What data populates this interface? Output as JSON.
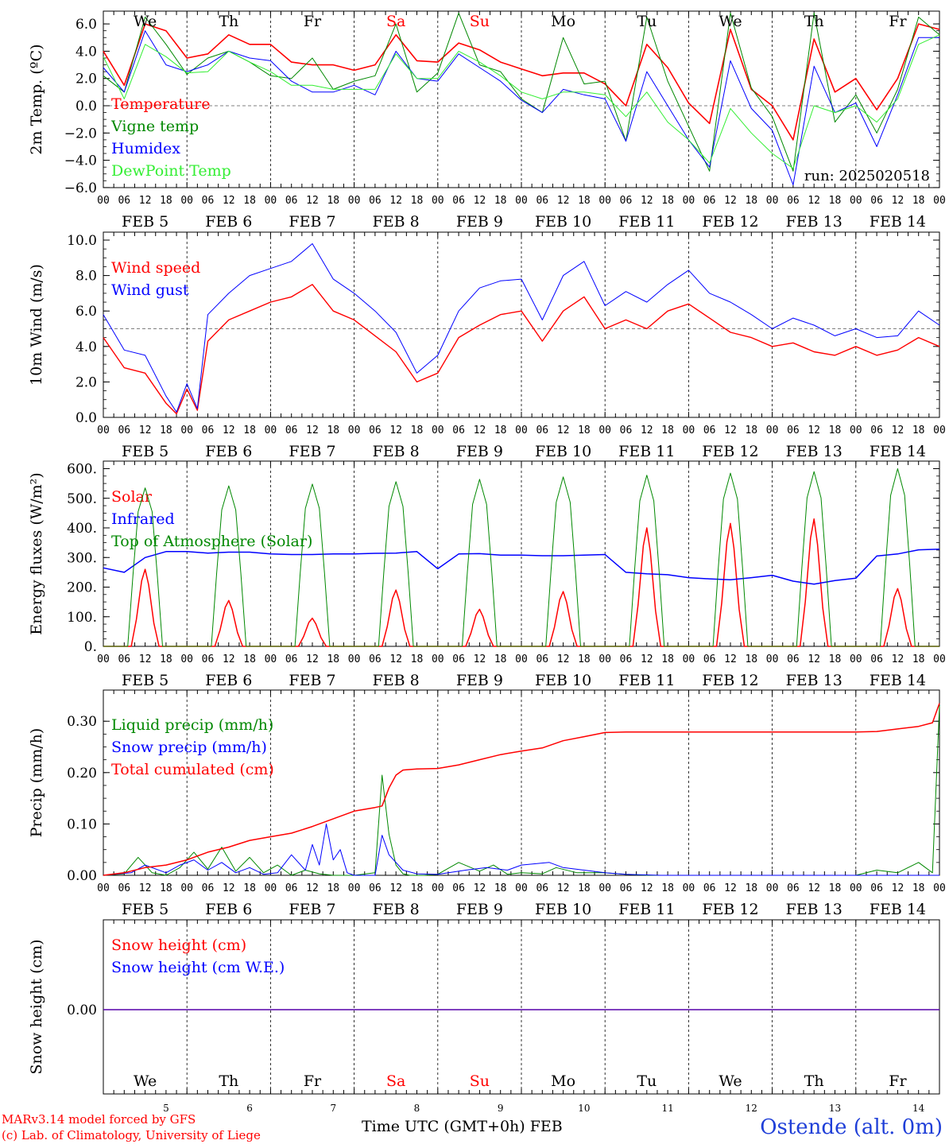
{
  "run": "run: 2025020518",
  "x_axis_title": "Time UTC (GMT+0h) FEB",
  "credit_line1": "MARv3.14 model forced by GFS",
  "credit_line2": "(c) Lab. of Climatology, University of Liege",
  "station": "Ostende (alt. 0m)",
  "hour_ticks": [
    "00",
    "06",
    "12",
    "18"
  ],
  "last_hour_tick": "00",
  "days": [
    {
      "weekday": "We",
      "date": "FEB  5",
      "day": "5",
      "weekend": false
    },
    {
      "weekday": "Th",
      "date": "FEB  6",
      "day": "6",
      "weekend": false
    },
    {
      "weekday": "Fr",
      "date": "FEB  7",
      "day": "7",
      "weekend": false
    },
    {
      "weekday": "Sa",
      "date": "FEB  8",
      "day": "8",
      "weekend": true
    },
    {
      "weekday": "Su",
      "date": "FEB  9",
      "day": "9",
      "weekend": true
    },
    {
      "weekday": "Mo",
      "date": "FEB 10",
      "day": "10",
      "weekend": false
    },
    {
      "weekday": "Tu",
      "date": "FEB 11",
      "day": "11",
      "weekend": false
    },
    {
      "weekday": "We",
      "date": "FEB 12",
      "day": "12",
      "weekend": false
    },
    {
      "weekday": "Th",
      "date": "FEB 13",
      "day": "13",
      "weekend": false
    },
    {
      "weekday": "Fr",
      "date": "FEB 14",
      "day": "14",
      "weekend": false
    }
  ],
  "colors": {
    "red": "#ff0000",
    "green": "#008800",
    "blue": "#0000ff",
    "lightgreen": "#33ee33",
    "weekend": "#ff0000",
    "station": "#1f3fd8"
  },
  "chart_data": [
    {
      "type": "line",
      "ylabel": "2m Temp. (ºC)",
      "ylim": [
        -6,
        7
      ],
      "yticks": [
        "6.0",
        "4.0",
        "2.0",
        "0.0",
        "−2.0",
        "−4.0",
        "−6.0"
      ],
      "ytick_values": [
        6,
        4,
        2,
        0,
        -2,
        -4,
        -6
      ],
      "ref_line": 0,
      "x_hours": [
        0,
        6,
        12,
        18,
        24,
        30,
        36,
        42,
        48,
        54,
        60,
        66,
        72,
        78,
        84,
        90,
        96,
        102,
        108,
        114,
        120,
        126,
        132,
        138,
        144,
        150,
        156,
        162,
        168,
        174,
        180,
        186,
        192,
        198,
        204,
        210,
        216,
        222,
        228,
        234,
        240
      ],
      "series": [
        {
          "name": "Temperature",
          "color": "red",
          "width": 1.6,
          "values": [
            4.0,
            1.5,
            6.0,
            5.5,
            3.5,
            3.8,
            5.2,
            4.5,
            4.5,
            3.2,
            3.0,
            3.0,
            2.6,
            3.0,
            5.2,
            3.3,
            3.2,
            4.6,
            4.1,
            3.2,
            2.7,
            2.2,
            2.4,
            2.4,
            1.6,
            0.0,
            4.5,
            2.8,
            0.2,
            -1.3,
            5.6,
            1.2,
            0.0,
            -2.5,
            4.9,
            1.0,
            2.0,
            -0.3,
            2.0,
            6.0,
            5.6
          ]
        },
        {
          "name": "Vigne temp",
          "color": "green",
          "width": 1,
          "values": [
            2.2,
            1.0,
            6.5,
            4.5,
            2.3,
            3.5,
            4.0,
            3.2,
            2.2,
            2.0,
            3.5,
            1.2,
            1.8,
            2.2,
            6.0,
            1.0,
            2.4,
            6.8,
            3.0,
            2.5,
            0.5,
            -0.5,
            5.0,
            1.6,
            1.8,
            -2.6,
            6.5,
            1.8,
            -1.5,
            -4.8,
            6.8,
            1.3,
            -0.8,
            -4.8,
            6.8,
            -1.2,
            0.8,
            -2.0,
            1.2,
            6.5,
            5.2
          ]
        },
        {
          "name": "Humidex",
          "color": "blue",
          "width": 1,
          "values": [
            2.8,
            1.0,
            5.5,
            3.0,
            2.5,
            3.0,
            4.0,
            3.5,
            3.3,
            1.8,
            1.0,
            1.0,
            1.5,
            0.8,
            4.0,
            2.0,
            1.8,
            3.8,
            2.8,
            1.8,
            0.4,
            -0.5,
            1.2,
            0.8,
            0.5,
            -2.6,
            2.5,
            0.0,
            -2.5,
            -4.5,
            3.3,
            -0.2,
            -1.8,
            -5.8,
            2.9,
            -0.5,
            0.2,
            -3.0,
            0.8,
            5.0,
            5.0
          ]
        },
        {
          "name": "DewPoint Temp",
          "color": "lightgreen",
          "width": 1,
          "values": [
            3.6,
            0.5,
            4.5,
            3.6,
            2.4,
            2.5,
            4.0,
            3.2,
            2.5,
            1.5,
            1.5,
            1.2,
            1.2,
            1.2,
            3.8,
            2.0,
            2.0,
            4.0,
            3.2,
            2.2,
            1.0,
            0.5,
            1.0,
            1.0,
            0.8,
            -0.8,
            1.0,
            -1.2,
            -2.5,
            -4.2,
            -0.2,
            -2.0,
            -3.5,
            -4.6,
            0.0,
            -0.5,
            0.0,
            -1.2,
            0.5,
            4.5,
            5.2
          ]
        }
      ]
    },
    {
      "type": "line",
      "ylabel": "10m Wind (m/s)",
      "ylim": [
        0,
        10.6
      ],
      "yticks": [
        "10.0",
        "8.0",
        "6.0",
        "4.0",
        "2.0",
        "0.0"
      ],
      "ytick_values": [
        10,
        8,
        6,
        4,
        2,
        0
      ],
      "ref_line": 5,
      "x_hours": [
        0,
        6,
        12,
        18,
        21,
        24,
        27,
        30,
        36,
        42,
        48,
        54,
        60,
        66,
        72,
        78,
        84,
        90,
        96,
        102,
        108,
        114,
        120,
        126,
        132,
        138,
        144,
        150,
        156,
        162,
        168,
        174,
        180,
        186,
        192,
        198,
        204,
        210,
        216,
        222,
        228,
        234,
        240
      ],
      "series": [
        {
          "name": "Wind speed",
          "color": "red",
          "width": 1.4,
          "values": [
            4.5,
            2.8,
            2.5,
            0.8,
            0.2,
            1.6,
            0.4,
            4.3,
            5.5,
            6.0,
            6.5,
            6.8,
            7.5,
            6.0,
            5.5,
            4.6,
            3.7,
            2.0,
            2.5,
            4.5,
            5.2,
            5.8,
            6.0,
            4.3,
            6.0,
            6.8,
            5.0,
            5.5,
            5.0,
            6.0,
            6.4,
            5.6,
            4.8,
            4.5,
            4.0,
            4.2,
            3.7,
            3.5,
            4.0,
            3.5,
            3.8,
            4.5,
            4.0
          ]
        },
        {
          "name": "Wind gust",
          "color": "blue",
          "width": 1,
          "values": [
            5.8,
            3.8,
            3.5,
            1.2,
            0.3,
            1.9,
            0.5,
            5.8,
            7.0,
            8.0,
            8.4,
            8.8,
            9.8,
            7.8,
            7.0,
            6.0,
            4.8,
            2.5,
            3.5,
            6.0,
            7.3,
            7.7,
            7.8,
            5.5,
            8.0,
            8.8,
            6.3,
            7.1,
            6.5,
            7.5,
            8.3,
            7.0,
            6.5,
            5.8,
            5.0,
            5.6,
            5.2,
            4.6,
            5.0,
            4.5,
            4.6,
            6.0,
            5.2
          ]
        }
      ]
    },
    {
      "type": "line",
      "ylabel": "Energy fluxes (W/m²)",
      "ylim": [
        0,
        610
      ],
      "yticks": [
        "600.",
        "500.",
        "400.",
        "300.",
        "200.",
        "100.",
        "0."
      ],
      "ytick_values": [
        600,
        500,
        400,
        300,
        200,
        100,
        0
      ],
      "series": [
        {
          "name": "Solar",
          "color": "red",
          "width": 1.5,
          "peaks": [
            260,
            155,
            95,
            190,
            125,
            185,
            400,
            415,
            430,
            195
          ]
        },
        {
          "name": "Infrared",
          "color": "blue",
          "width": 1.5,
          "x_hours": [
            0,
            6,
            12,
            18,
            24,
            30,
            36,
            42,
            48,
            54,
            60,
            66,
            72,
            78,
            84,
            90,
            96,
            102,
            108,
            114,
            120,
            126,
            132,
            138,
            144,
            150,
            156,
            162,
            168,
            174,
            180,
            186,
            192,
            198,
            204,
            210,
            216,
            222,
            228,
            234,
            240
          ],
          "values": [
            265,
            250,
            300,
            320,
            320,
            315,
            318,
            318,
            312,
            310,
            310,
            312,
            312,
            314,
            315,
            320,
            262,
            312,
            313,
            308,
            308,
            306,
            306,
            308,
            310,
            250,
            245,
            242,
            232,
            228,
            225,
            232,
            240,
            220,
            210,
            222,
            230,
            305,
            312,
            326,
            328
          ]
        },
        {
          "name": "Top of Atmosphere (Solar)",
          "color": "green",
          "width": 1,
          "peaks": [
            535,
            542,
            548,
            556,
            564,
            572,
            578,
            585,
            590,
            600
          ]
        }
      ]
    },
    {
      "type": "line",
      "ylabel": "Precip (mm/h)",
      "ylim": [
        0,
        0.35
      ],
      "yticks": [
        "0.30",
        "0.20",
        "0.10",
        "0.00"
      ],
      "ytick_values": [
        0.3,
        0.2,
        0.1,
        0
      ],
      "series": [
        {
          "name": "Liquid precip (mm/h)",
          "color": "green",
          "width": 1,
          "x_hours": [
            0,
            6,
            10,
            14,
            18,
            22,
            26,
            30,
            34,
            38,
            42,
            46,
            50,
            54,
            58,
            62,
            66,
            72,
            78,
            80,
            82,
            84,
            86,
            88,
            92,
            96,
            102,
            108,
            112,
            116,
            120,
            126,
            130,
            136,
            144,
            150,
            156,
            168,
            192,
            216,
            222,
            228,
            234,
            238,
            240
          ],
          "values": [
            0,
            0.003,
            0.035,
            0.005,
            0,
            0.015,
            0.045,
            0.012,
            0.055,
            0.008,
            0.035,
            0.005,
            0.02,
            0,
            0.01,
            0.003,
            0.0,
            0,
            0.005,
            0.195,
            0.08,
            0.02,
            0.003,
            0,
            0,
            0.002,
            0.025,
            0.008,
            0.02,
            0.002,
            0.005,
            0.003,
            0.015,
            0.005,
            0.005,
            0.002,
            0,
            0,
            0,
            0,
            0.01,
            0.005,
            0.025,
            0.005,
            0.33
          ]
        },
        {
          "name": "Snow precip (mm/h)",
          "color": "blue",
          "width": 1,
          "x_hours": [
            0,
            8,
            12,
            18,
            22,
            26,
            30,
            34,
            38,
            42,
            46,
            50,
            54,
            58,
            60,
            62,
            64,
            66,
            68,
            70,
            72,
            78,
            80,
            82,
            86,
            90,
            96,
            104,
            110,
            116,
            120,
            128,
            132,
            138,
            144,
            150,
            160,
            168,
            240
          ],
          "values": [
            0,
            0.005,
            0.02,
            0.005,
            0.02,
            0.03,
            0.01,
            0.025,
            0.005,
            0.015,
            0.002,
            0.005,
            0.04,
            0.01,
            0.06,
            0.02,
            0.1,
            0.03,
            0.05,
            0.005,
            0.0,
            0,
            0.078,
            0.04,
            0.01,
            0.003,
            0.002,
            0.01,
            0.015,
            0.01,
            0.02,
            0.025,
            0.015,
            0.01,
            0.005,
            0.002,
            0,
            0,
            0
          ]
        },
        {
          "name": "Total cumulated (cm)",
          "color": "red",
          "width": 1.5,
          "x_hours": [
            0,
            6,
            12,
            18,
            24,
            30,
            36,
            42,
            48,
            54,
            60,
            66,
            72,
            78,
            80,
            82,
            84,
            86,
            90,
            96,
            102,
            108,
            114,
            120,
            126,
            132,
            138,
            144,
            150,
            168,
            192,
            216,
            222,
            228,
            234,
            238,
            240
          ],
          "values": [
            0,
            0.005,
            0.015,
            0.02,
            0.03,
            0.045,
            0.055,
            0.068,
            0.075,
            0.082,
            0.095,
            0.11,
            0.125,
            0.132,
            0.135,
            0.17,
            0.195,
            0.205,
            0.207,
            0.208,
            0.215,
            0.225,
            0.235,
            0.242,
            0.248,
            0.262,
            0.27,
            0.278,
            0.279,
            0.279,
            0.279,
            0.279,
            0.28,
            0.285,
            0.29,
            0.297,
            0.335
          ]
        }
      ]
    },
    {
      "type": "line",
      "ylabel": "Snow height (cm)",
      "ylim": [
        -1,
        1
      ],
      "yticks": [
        "0.00"
      ],
      "ytick_values": [
        0
      ],
      "series": [
        {
          "name": "Snow height (cm)",
          "color": "red",
          "width": 1.4,
          "x_hours": [
            0,
            240
          ],
          "values": [
            0,
            0
          ]
        },
        {
          "name": "Snow height (cm W.E.)",
          "color": "blue",
          "width": 1,
          "x_hours": [
            0,
            240
          ],
          "values": [
            0,
            0
          ]
        }
      ]
    }
  ]
}
